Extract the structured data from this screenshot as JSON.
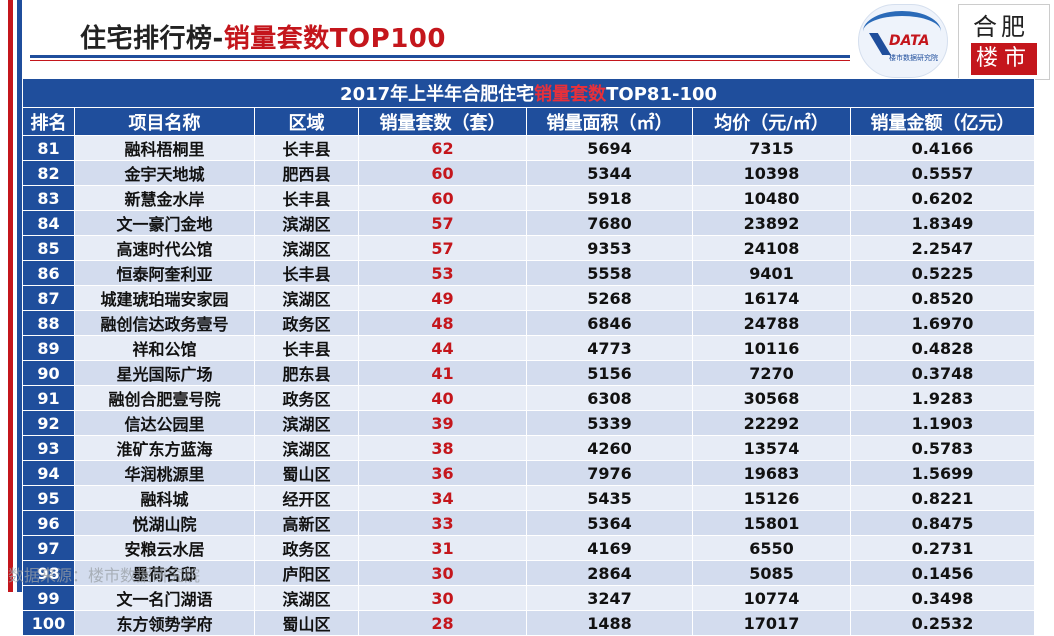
{
  "header": {
    "title_main": "住宅排行榜-",
    "title_highlight": "销量套数TOP100",
    "logo_data_text": "DATA",
    "logo_data_sub": "楼市数据研究院",
    "logo_hf_top": "合肥",
    "logo_hf_bottom": "楼市"
  },
  "table": {
    "caption_pre": "2017年上半年合肥住宅",
    "caption_highlight": "销量套数",
    "caption_post": "TOP81-100",
    "columns": [
      "排名",
      "项目名称",
      "区域",
      "销量套数（套）",
      "销量面积（㎡）",
      "均价（元/㎡）",
      "销量金额（亿元）"
    ],
    "rows": [
      {
        "rank": "81",
        "name": "融科梧桐里",
        "area": "长丰县",
        "units": "62",
        "sqm": "5694",
        "price": "7315",
        "amount": "0.4166"
      },
      {
        "rank": "82",
        "name": "金宇天地城",
        "area": "肥西县",
        "units": "60",
        "sqm": "5344",
        "price": "10398",
        "amount": "0.5557"
      },
      {
        "rank": "83",
        "name": "新慧金水岸",
        "area": "长丰县",
        "units": "60",
        "sqm": "5918",
        "price": "10480",
        "amount": "0.6202"
      },
      {
        "rank": "84",
        "name": "文一豪门金地",
        "area": "滨湖区",
        "units": "57",
        "sqm": "7680",
        "price": "23892",
        "amount": "1.8349"
      },
      {
        "rank": "85",
        "name": "高速时代公馆",
        "area": "滨湖区",
        "units": "57",
        "sqm": "9353",
        "price": "24108",
        "amount": "2.2547"
      },
      {
        "rank": "86",
        "name": "恒泰阿奎利亚",
        "area": "长丰县",
        "units": "53",
        "sqm": "5558",
        "price": "9401",
        "amount": "0.5225"
      },
      {
        "rank": "87",
        "name": "城建琥珀瑞安家园",
        "area": "滨湖区",
        "units": "49",
        "sqm": "5268",
        "price": "16174",
        "amount": "0.8520"
      },
      {
        "rank": "88",
        "name": "融创信达政务壹号",
        "area": "政务区",
        "units": "48",
        "sqm": "6846",
        "price": "24788",
        "amount": "1.6970"
      },
      {
        "rank": "89",
        "name": "祥和公馆",
        "area": "长丰县",
        "units": "44",
        "sqm": "4773",
        "price": "10116",
        "amount": "0.4828"
      },
      {
        "rank": "90",
        "name": "星光国际广场",
        "area": "肥东县",
        "units": "41",
        "sqm": "5156",
        "price": "7270",
        "amount": "0.3748"
      },
      {
        "rank": "91",
        "name": "融创合肥壹号院",
        "area": "政务区",
        "units": "40",
        "sqm": "6308",
        "price": "30568",
        "amount": "1.9283"
      },
      {
        "rank": "92",
        "name": "信达公园里",
        "area": "滨湖区",
        "units": "39",
        "sqm": "5339",
        "price": "22292",
        "amount": "1.1903"
      },
      {
        "rank": "93",
        "name": "淮矿东方蓝海",
        "area": "滨湖区",
        "units": "38",
        "sqm": "4260",
        "price": "13574",
        "amount": "0.5783"
      },
      {
        "rank": "94",
        "name": "华润桃源里",
        "area": "蜀山区",
        "units": "36",
        "sqm": "7976",
        "price": "19683",
        "amount": "1.5699"
      },
      {
        "rank": "95",
        "name": "融科城",
        "area": "经开区",
        "units": "34",
        "sqm": "5435",
        "price": "15126",
        "amount": "0.8221"
      },
      {
        "rank": "96",
        "name": "悦湖山院",
        "area": "高新区",
        "units": "33",
        "sqm": "5364",
        "price": "15801",
        "amount": "0.8475"
      },
      {
        "rank": "97",
        "name": "安粮云水居",
        "area": "政务区",
        "units": "31",
        "sqm": "4169",
        "price": "6550",
        "amount": "0.2731"
      },
      {
        "rank": "98",
        "name": "墨荷名邸",
        "area": "庐阳区",
        "units": "30",
        "sqm": "2864",
        "price": "5085",
        "amount": "0.1456"
      },
      {
        "rank": "99",
        "name": "文一名门湖语",
        "area": "滨湖区",
        "units": "30",
        "sqm": "3247",
        "price": "10774",
        "amount": "0.3498"
      },
      {
        "rank": "100",
        "name": "东方领势学府",
        "area": "蜀山区",
        "units": "28",
        "sqm": "1488",
        "price": "17017",
        "amount": "0.2532"
      }
    ]
  },
  "watermark": "数据来源：楼市数据研究院",
  "colors": {
    "blue": "#1f4e9c",
    "red": "#c4161c",
    "row_light": "#e7ecf6",
    "row_dark": "#d3dcee"
  }
}
